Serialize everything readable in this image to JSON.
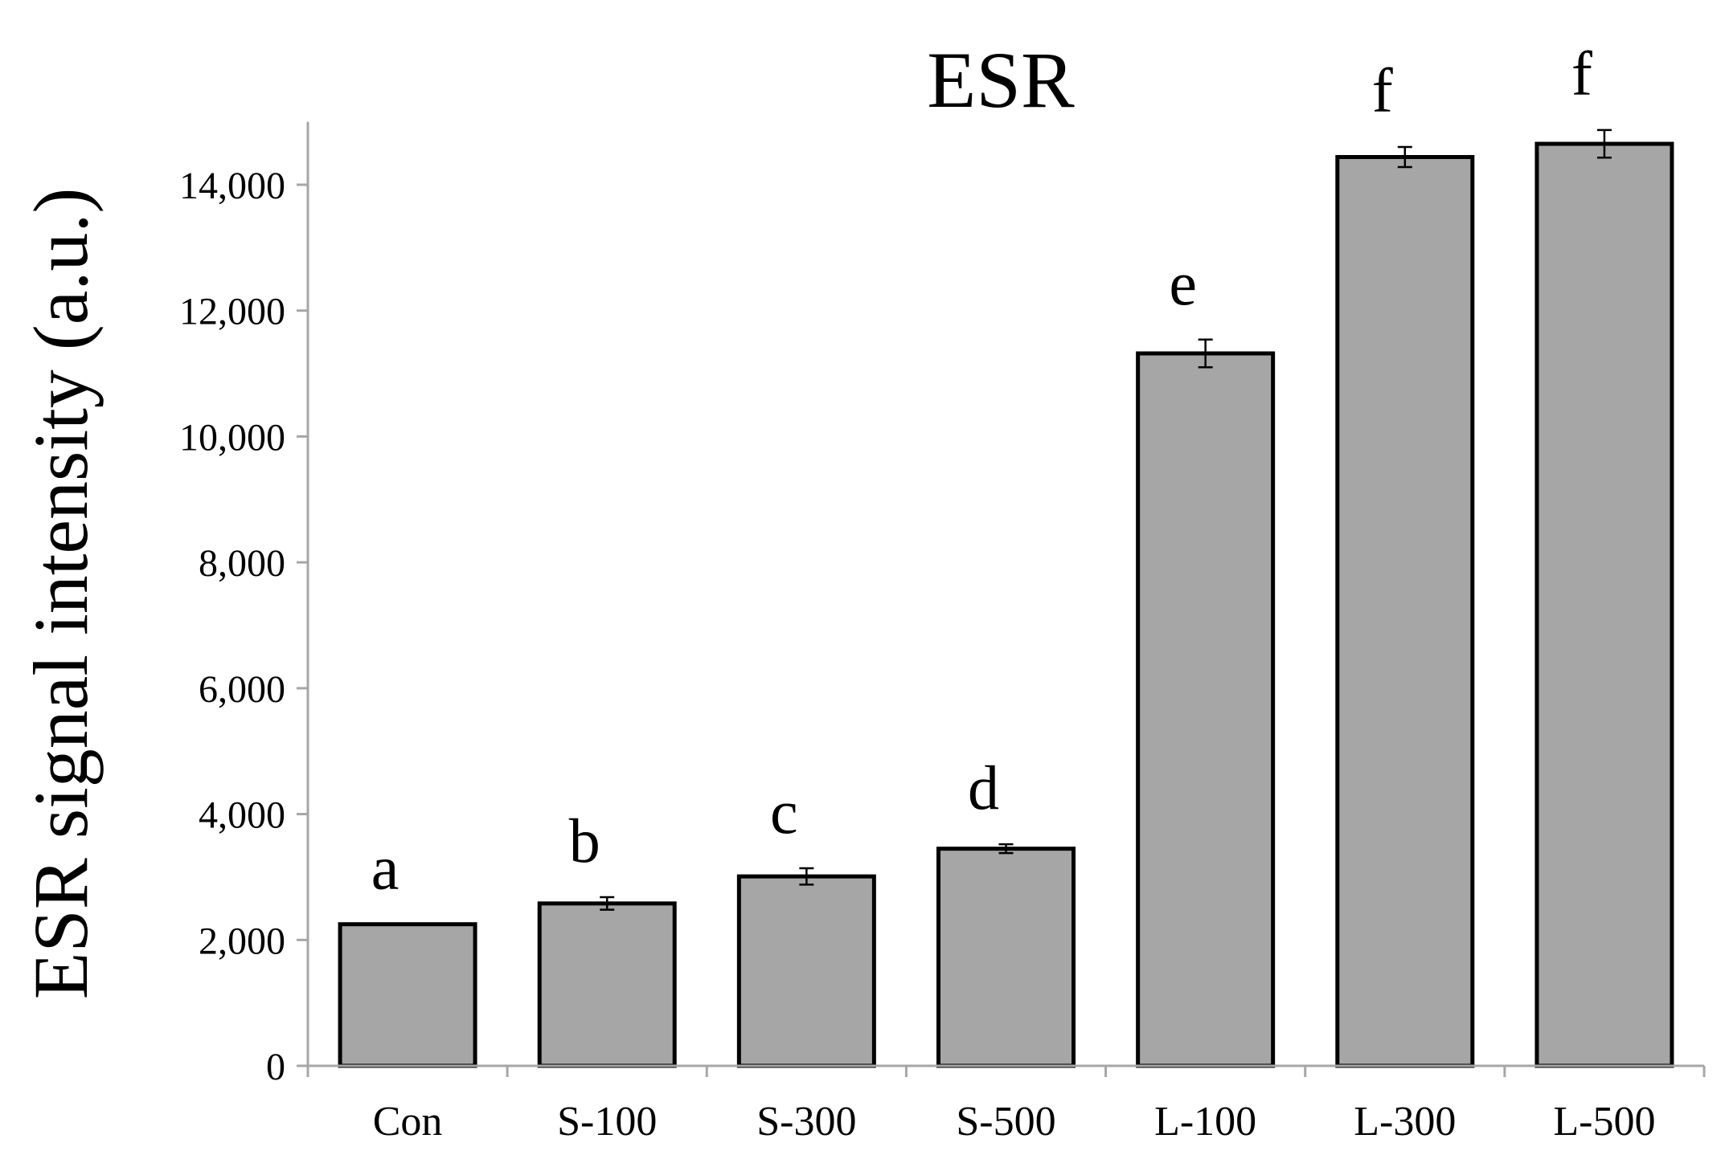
{
  "chart_data": {
    "type": "bar",
    "title": "ESR",
    "xlabel": "",
    "ylabel": "ESR signal intensity (a.u.)",
    "categories": [
      "Con",
      "S-100",
      "S-300",
      "S-500",
      "L-100",
      "L-300",
      "L-500"
    ],
    "values": [
      2250,
      2580,
      3010,
      3450,
      11320,
      14440,
      14650
    ],
    "errors": [
      0,
      100,
      130,
      70,
      220,
      160,
      220
    ],
    "significance_letters": [
      "a",
      "b",
      "c",
      "d",
      "e",
      "f",
      "f"
    ],
    "ylim": [
      0,
      15000
    ],
    "yticks": [
      0,
      2000,
      4000,
      6000,
      8000,
      10000,
      12000,
      14000
    ],
    "ytick_labels": [
      "0",
      "2,000",
      "4,000",
      "6,000",
      "8,000",
      "10,000",
      "12,000",
      "14,000"
    ],
    "grid": false,
    "legend": "none",
    "colors": {
      "bar_fill": "#a6a6a6",
      "bar_stroke": "#000000",
      "axis": "#a6a6a6",
      "text": "#000000"
    }
  }
}
